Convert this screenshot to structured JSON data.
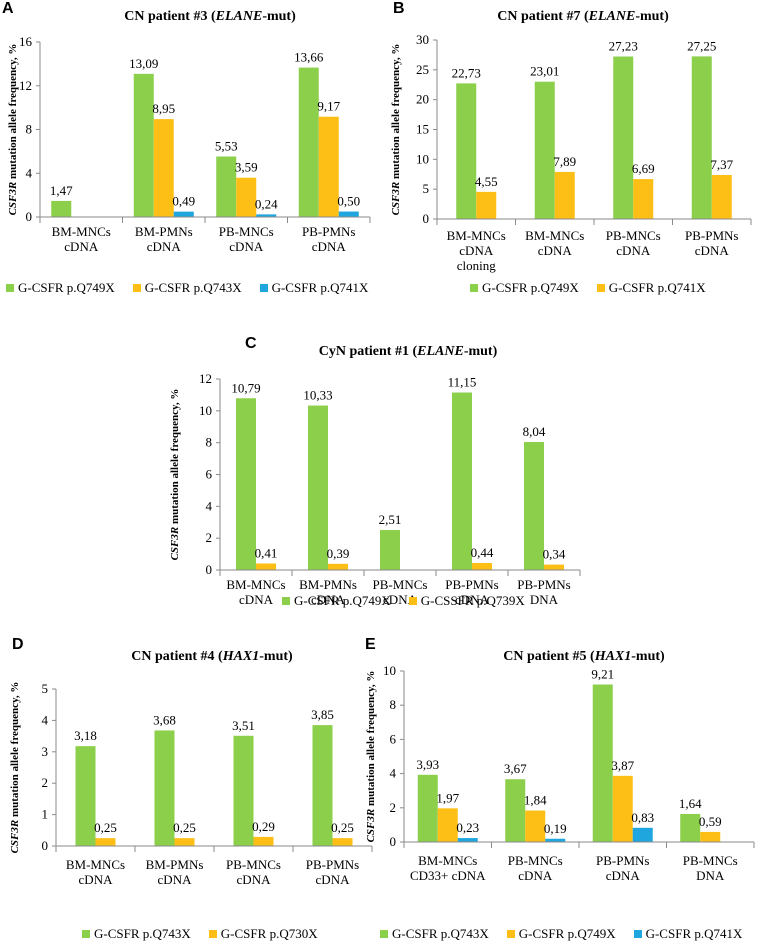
{
  "chart_data": [
    {
      "id": "A",
      "type": "bar",
      "panel_label": "A",
      "title_prefix": "CN patient #3 (",
      "title_italic": "ELANE",
      "title_suffix": "-mut)",
      "ylabel_italic": "CSF3R",
      "ylabel_rest": " mutation allele frequency, %",
      "ylim": [
        0,
        16
      ],
      "yticks": [
        "0",
        "4",
        "8",
        "12",
        "16"
      ],
      "categories": [
        [
          "BM-MNCs",
          "cDNA"
        ],
        [
          "BM-PMNs",
          "cDNA"
        ],
        [
          "PB-MNCs",
          "cDNA"
        ],
        [
          "PB-PMNs",
          "cDNA"
        ]
      ],
      "series": [
        {
          "name": "G-CSFR p.Q749X",
          "color": "#8bcf4a",
          "values": [
            1.47,
            13.09,
            5.53,
            13.66
          ],
          "labels": [
            "1,47",
            "13,09",
            "5,53",
            "13,66"
          ]
        },
        {
          "name": "G-CSFR p.Q743X",
          "color": "#fdbf15",
          "values": [
            null,
            8.95,
            3.59,
            9.17
          ],
          "labels": [
            "",
            "8,95",
            "3,59",
            "9,17"
          ]
        },
        {
          "name": "G-CSFR p.Q741X",
          "color": "#1fa6df",
          "values": [
            null,
            0.49,
            0.24,
            0.5
          ],
          "labels": [
            "",
            "0,49",
            "0,24",
            "0,50"
          ]
        }
      ]
    },
    {
      "id": "B",
      "type": "bar",
      "panel_label": "B",
      "title_prefix": "CN patient #7 (",
      "title_italic": "ELANE",
      "title_suffix": "-mut)",
      "ylabel_italic": "CSF3R",
      "ylabel_rest": " mutation allele frequency, %",
      "ylim": [
        0,
        30
      ],
      "yticks": [
        "0",
        "5",
        "10",
        "15",
        "20",
        "25",
        "30"
      ],
      "categories": [
        [
          "BM-MNCs",
          "cDNA",
          "cloning"
        ],
        [
          "BM-MNCs",
          "cDNA"
        ],
        [
          "PB-MNCs",
          "cDNA"
        ],
        [
          "PB-PMNs",
          "cDNA"
        ]
      ],
      "series": [
        {
          "name": "G-CSFR p.Q749X",
          "color": "#8bcf4a",
          "values": [
            22.73,
            23.01,
            27.23,
            27.25
          ],
          "labels": [
            "22,73",
            "23,01",
            "27,23",
            "27,25"
          ]
        },
        {
          "name": "G-CSFR p.Q741X",
          "color": "#fdbf15",
          "values": [
            4.55,
            7.89,
            6.69,
            7.37
          ],
          "labels": [
            "4,55",
            "7,89",
            "6,69",
            "7,37"
          ]
        }
      ]
    },
    {
      "id": "C",
      "type": "bar",
      "panel_label": "C",
      "title_prefix": "CyN patient #1 (",
      "title_italic": "ELANE",
      "title_suffix": "-mut)",
      "ylabel_italic": "CSF3R",
      "ylabel_rest": " mutation allele frequency, %",
      "ylim": [
        0,
        12
      ],
      "yticks": [
        "0",
        "2",
        "4",
        "6",
        "8",
        "10",
        "12"
      ],
      "categories": [
        [
          "BM-MNCs",
          "cDNA"
        ],
        [
          "BM-PMNs",
          "cDNA"
        ],
        [
          "PB-MNCs",
          "cDNA"
        ],
        [
          "PB-PMNs",
          "cDNA"
        ],
        [
          "PB-PMNs",
          "DNA"
        ]
      ],
      "series": [
        {
          "name": "G-CSFR p.Q749X",
          "color": "#8bcf4a",
          "values": [
            10.79,
            10.33,
            2.51,
            11.15,
            8.04
          ],
          "labels": [
            "10,79",
            "10,33",
            "2,51",
            "11,15",
            "8,04"
          ]
        },
        {
          "name": "G-CSSFR p.Q739X",
          "color": "#fdbf15",
          "values": [
            0.41,
            0.39,
            null,
            0.44,
            0.34
          ],
          "labels": [
            "0,41",
            "0,39",
            "",
            "0,44",
            "0,34"
          ]
        }
      ]
    },
    {
      "id": "D",
      "type": "bar",
      "panel_label": "D",
      "title_prefix": "CN patient #4 (",
      "title_italic": "HAX1",
      "title_suffix": "-mut)",
      "ylabel_italic": "CSF3R",
      "ylabel_rest": " mutation allele frequency, %",
      "ylim": [
        0,
        5
      ],
      "yticks": [
        "0",
        "1",
        "2",
        "3",
        "4",
        "5"
      ],
      "categories": [
        [
          "BM-MNCs",
          "cDNA"
        ],
        [
          "BM-PMNs",
          "cDNA"
        ],
        [
          "PB-MNCs",
          "cDNA"
        ],
        [
          "PB-PMNs",
          "cDNA"
        ]
      ],
      "series": [
        {
          "name": "G-CSFR p.Q743X",
          "color": "#8bcf4a",
          "values": [
            3.18,
            3.68,
            3.51,
            3.85
          ],
          "labels": [
            "3,18",
            "3,68",
            "3,51",
            "3,85"
          ]
        },
        {
          "name": "G-CSFR p.Q730X",
          "color": "#fdbf15",
          "values": [
            0.25,
            0.25,
            0.29,
            0.25
          ],
          "labels": [
            "0,25",
            "0,25",
            "0,29",
            "0,25"
          ]
        }
      ]
    },
    {
      "id": "E",
      "type": "bar",
      "panel_label": "E",
      "title_prefix": "CN patient #5 (",
      "title_italic": "HAX1",
      "title_suffix": "-mut)",
      "ylabel_italic": "CSF3R",
      "ylabel_rest": " mutation allele frequency, %",
      "ylim": [
        0,
        10
      ],
      "yticks": [
        "0",
        "2",
        "4",
        "6",
        "8",
        "10"
      ],
      "categories": [
        [
          "BM-MNCs",
          "CD33+ cDNA"
        ],
        [
          "PB-MNCs",
          "cDNA"
        ],
        [
          "PB-PMNs",
          "cDNA"
        ],
        [
          "PB-MNCs",
          "DNA"
        ]
      ],
      "series": [
        {
          "name": "G-CSFR p.Q743X",
          "color": "#8bcf4a",
          "values": [
            3.93,
            3.67,
            9.21,
            1.64
          ],
          "labels": [
            "3,93",
            "3,67",
            "9,21",
            "1,64"
          ]
        },
        {
          "name": "G-CSFR p.Q749X",
          "color": "#fdbf15",
          "values": [
            1.97,
            1.84,
            3.87,
            0.59
          ],
          "labels": [
            "1,97",
            "1,84",
            "3,87",
            "0,59"
          ]
        },
        {
          "name": "G-CSFR p.Q741X",
          "color": "#1fa6df",
          "values": [
            0.23,
            0.19,
            0.83,
            null
          ],
          "labels": [
            "0,23",
            "0,19",
            "0,83",
            ""
          ]
        }
      ]
    }
  ]
}
